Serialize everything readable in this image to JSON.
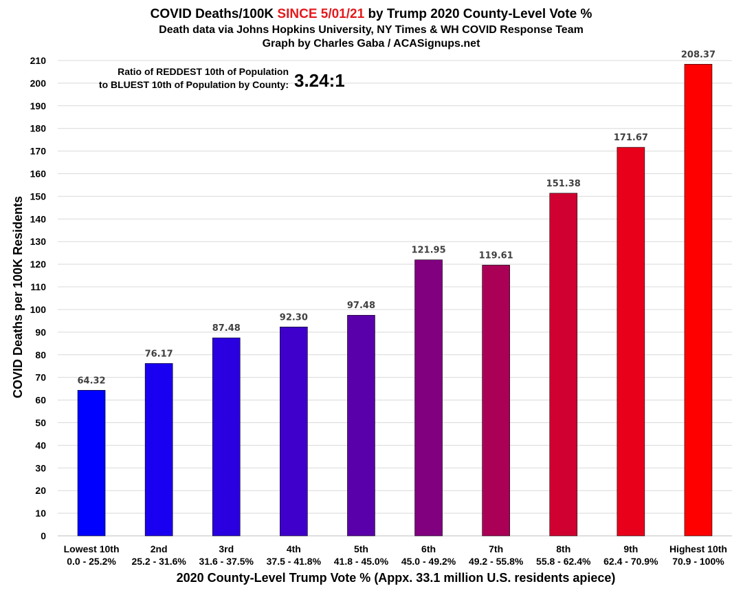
{
  "title": {
    "line1_prefix": "COVID Deaths/100K ",
    "line1_highlight": "SINCE 5/01/21",
    "line1_suffix": " by Trump 2020 County-Level Vote %",
    "line2": "Death data via Johns Hopkins University, NY Times & WH COVID Response Team",
    "line3": "Graph by Charles Gaba / ACASignups.net",
    "highlight_color": "#e31a1c"
  },
  "annotation": {
    "line1": "Ratio of REDDEST 10th of Population",
    "line2": "to BLUEST 10th of Population by County:",
    "ratio": "3.24:1"
  },
  "chart_data": {
    "type": "bar",
    "categories": [
      "Lowest 10th",
      "2nd",
      "3rd",
      "4th",
      "5th",
      "6th",
      "7th",
      "8th",
      "9th",
      "Highest 10th"
    ],
    "ranges": [
      "0.0 - 25.2%",
      "25.2 - 31.6%",
      "31.6 - 37.5%",
      "37.5 - 41.8%",
      "41.8 - 45.0%",
      "45.0 - 49.2%",
      "49.2 - 55.8%",
      "55.8 - 62.4%",
      "62.4 - 70.9%",
      "70.9 - 100%"
    ],
    "values": [
      64.32,
      76.17,
      87.48,
      92.3,
      97.48,
      121.95,
      119.61,
      151.38,
      171.67,
      208.37
    ],
    "value_labels": [
      "64.32",
      "76.17",
      "87.48",
      "92.30",
      "97.48",
      "121.95",
      "119.61",
      "151.38",
      "171.67",
      "208.37"
    ],
    "colors": [
      "#0000ff",
      "#1a00f0",
      "#2a00e0",
      "#3f00cc",
      "#5a00aa",
      "#800080",
      "#aa0055",
      "#d00030",
      "#e8001a",
      "#ff0000"
    ],
    "xlabel": "2020 County-Level Trump Vote % (Appx. 33.1 million U.S. residents apiece)",
    "ylabel": "COVID Deaths per 100K Residents",
    "ylim": [
      0,
      210
    ],
    "ytick_step": 10,
    "grid": true
  }
}
